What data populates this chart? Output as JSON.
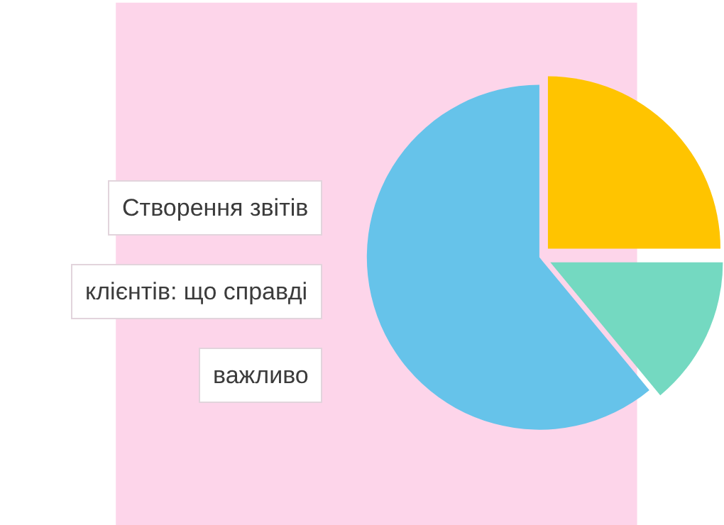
{
  "chart_data": {
    "type": "pie",
    "title": "Створення звітів\nклієнтів: що справді\nважливо",
    "categories": [
      null,
      null,
      null
    ],
    "values": [
      25,
      14,
      61
    ],
    "colors": [
      "#ffc400",
      "#74d9c1",
      "#66c3ea"
    ]
  }
}
